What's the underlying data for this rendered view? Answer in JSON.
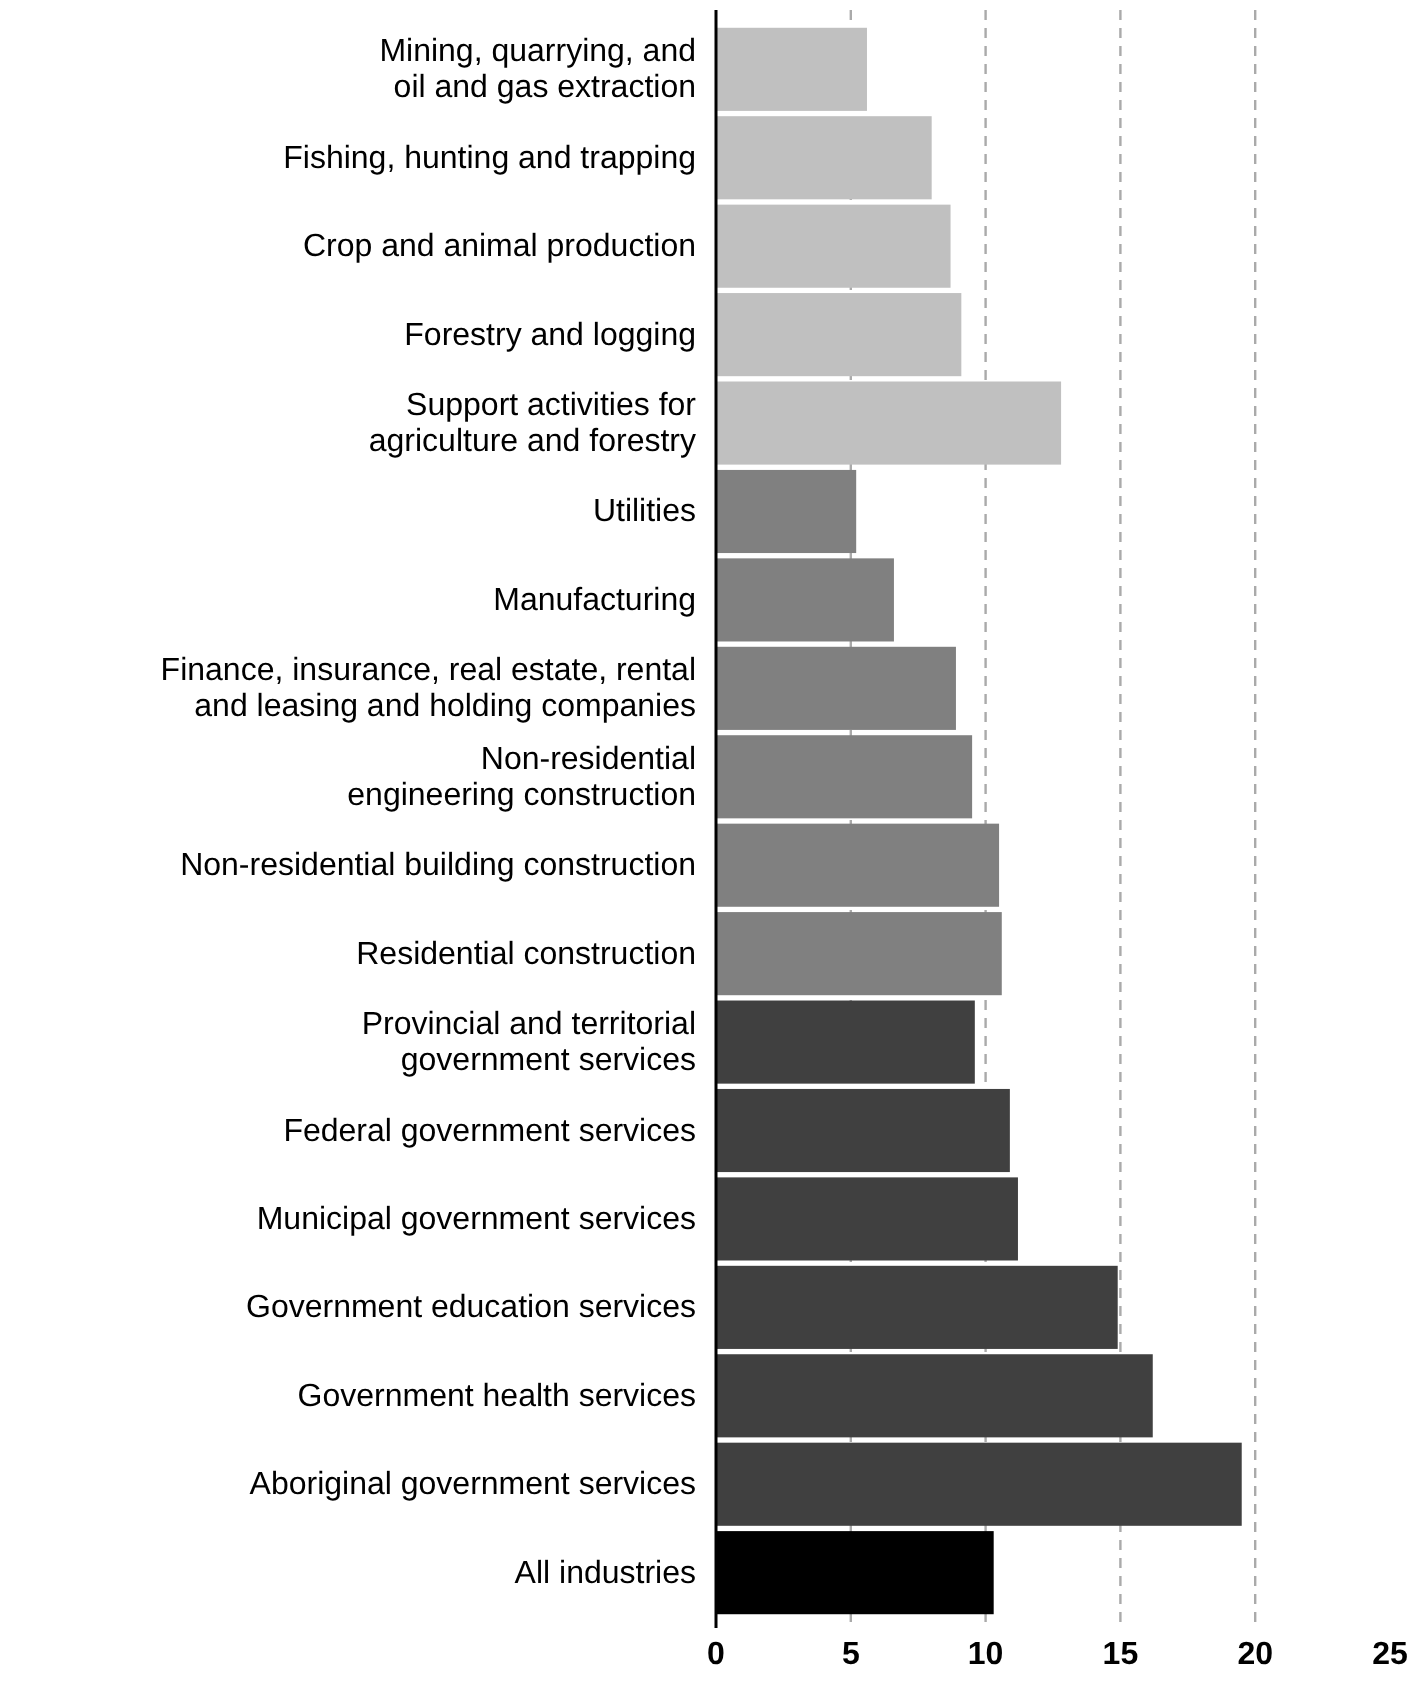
{
  "chart_data": {
    "type": "bar",
    "orientation": "horizontal",
    "categories": [
      "Mining, quarrying, and\noil and gas extraction",
      "Fishing, hunting and trapping",
      "Crop and animal production",
      "Forestry and logging",
      "Support activities for\nagriculture and forestry",
      "Utilities",
      "Manufacturing",
      "Finance, insurance, real estate, rental\nand leasing and holding companies",
      "Non-residential\nengineering construction",
      "Non-residential building construction",
      "Residential construction",
      "Provincial and territorial\ngovernment services",
      "Federal government services",
      "Municipal government services",
      "Government education services",
      "Government health services",
      "Aboriginal government services",
      "All industries"
    ],
    "values": [
      5.6,
      8.0,
      8.7,
      9.1,
      12.8,
      5.2,
      6.6,
      8.9,
      9.5,
      10.5,
      10.6,
      9.6,
      10.9,
      11.2,
      14.9,
      16.2,
      19.5,
      10.3
    ],
    "colors": [
      "#c0c0c0",
      "#c0c0c0",
      "#c0c0c0",
      "#c0c0c0",
      "#c0c0c0",
      "#808080",
      "#808080",
      "#808080",
      "#808080",
      "#808080",
      "#808080",
      "#404040",
      "#404040",
      "#404040",
      "#404040",
      "#404040",
      "#404040",
      "#000000"
    ],
    "xlim": [
      0,
      25
    ],
    "xticks": [
      0,
      5,
      10,
      15,
      20,
      25
    ],
    "grid": "x"
  }
}
